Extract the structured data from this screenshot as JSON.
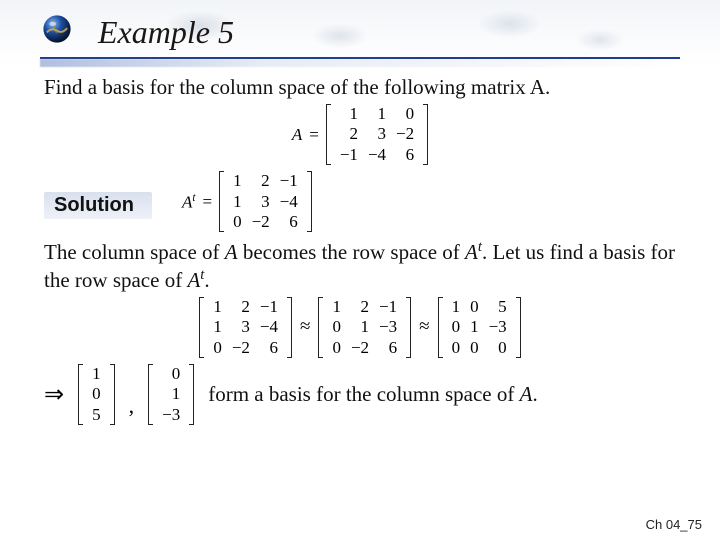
{
  "colors": {
    "rule": "#1f3f8f",
    "title": "#1a1714",
    "text": "#111111",
    "bg": "#ffffff",
    "solution_bg_top": "#d9e0ee",
    "solution_bg_bottom": "#eef1f7",
    "map_tint": "#a0afc3"
  },
  "header": {
    "title": "Example 5",
    "bullet_icon": "globe-icon"
  },
  "prompt": "Find a basis for the column space of the following matrix A.",
  "matrix_A": {
    "label": "A",
    "eq": "=",
    "rows": [
      [
        "1",
        "1",
        "0"
      ],
      [
        "2",
        "3",
        "−2"
      ],
      [
        "−1",
        "−4",
        "6"
      ]
    ]
  },
  "solution_label": "Solution",
  "matrix_At": {
    "label": "A",
    "sup": "t",
    "eq": "=",
    "rows": [
      [
        "1",
        "2",
        "−1"
      ],
      [
        "1",
        "3",
        "−4"
      ],
      [
        "0",
        "−2",
        "6"
      ]
    ]
  },
  "explain_1a": "The column space of ",
  "explain_1_A": "A",
  "explain_1b": " becomes the row space of ",
  "explain_1_At_A": "A",
  "explain_1_At_t": "t",
  "explain_1c": ". Let us find a basis for the row space of ",
  "explain_1d_A": "A",
  "explain_1d_t": "t",
  "explain_1e": ".",
  "reduction": {
    "m1": [
      [
        "1",
        "2",
        "−1"
      ],
      [
        "1",
        "3",
        "−4"
      ],
      [
        "0",
        "−2",
        "6"
      ]
    ],
    "sym": "≈",
    "m2": [
      [
        "1",
        "2",
        "−1"
      ],
      [
        "0",
        "1",
        "−3"
      ],
      [
        "0",
        "−2",
        "6"
      ]
    ],
    "m3": [
      [
        "1",
        "0",
        "5"
      ],
      [
        "0",
        "1",
        "−3"
      ],
      [
        "0",
        "0",
        "0"
      ]
    ]
  },
  "implies": "⇒",
  "basis": {
    "v1": [
      [
        "1"
      ],
      [
        "0"
      ],
      [
        "5"
      ]
    ],
    "comma": ",",
    "v2": [
      [
        "0"
      ],
      [
        "1"
      ],
      [
        "−3"
      ]
    ]
  },
  "conclusion_a": "form a basis for the column space of ",
  "conclusion_A": "A",
  "conclusion_b": ".",
  "footer": "Ch 04_75"
}
